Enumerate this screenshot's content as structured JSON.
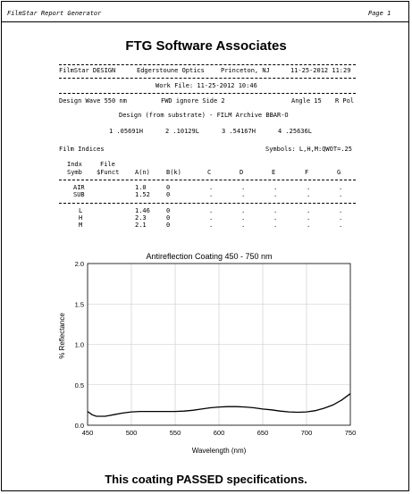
{
  "header": {
    "left": "FilmStar Report Generator",
    "right": "Page 1"
  },
  "company": "FTG Software Associates",
  "info": {
    "design": "FilmStar DESIGN",
    "company_name": "Edgerstoune Optics",
    "location": "Princeton, NJ",
    "datetime": "11-25-2012 11:29",
    "work_file": "Work File: 11-25-2012 10:46",
    "design_wave": "Design Wave 550 nm",
    "fwd": "FWD ignore Side 2",
    "angle": "Angle 15",
    "pol": "R Pol",
    "design_desc": "Design (from substrate) - FILM Archive BBAR-O",
    "layers": [
      "1 .05691H",
      "2 .10129L",
      "3 .54167H",
      "4 .25636L"
    ]
  },
  "indices": {
    "title": "Film Indices",
    "symbols": "Symbols: L,H,M:QWOT=.25",
    "head1": [
      "Indx",
      "File"
    ],
    "head2": [
      "Symb",
      "$Funct",
      "A(n)",
      "B(k)",
      "C",
      "D",
      "E",
      "F",
      "G"
    ],
    "dot": ".",
    "group1": [
      {
        "sym": "AIR",
        "a": "1.0",
        "b": "0"
      },
      {
        "sym": "SUB",
        "a": "1.52",
        "b": "0"
      }
    ],
    "group2": [
      {
        "sym": "L",
        "a": "1.46",
        "b": "0"
      },
      {
        "sym": "H",
        "a": "2.3",
        "b": "0"
      },
      {
        "sym": "M",
        "a": "2.1",
        "b": "0"
      }
    ]
  },
  "chart_data": {
    "type": "line",
    "title": "Antireflection Coating 450 - 750 nm",
    "xlabel": "Wavelength (nm)",
    "ylabel": "% Reflectance",
    "xlim": [
      450,
      750
    ],
    "ylim": [
      0,
      2.0
    ],
    "xticks": [
      "450",
      "500",
      "550",
      "600",
      "650",
      "700",
      "750"
    ],
    "yticks": [
      "0.0",
      "0.5",
      "1.0",
      "1.5",
      "2.0"
    ],
    "grid": true,
    "series": [
      {
        "color": "#000000",
        "x": [
          450,
          455,
          460,
          465,
          470,
          475,
          480,
          490,
          500,
          510,
          520,
          530,
          540,
          550,
          560,
          570,
          580,
          590,
          600,
          610,
          620,
          630,
          640,
          650,
          660,
          670,
          680,
          690,
          700,
          710,
          720,
          730,
          740,
          750
        ],
        "y": [
          0.17,
          0.13,
          0.11,
          0.11,
          0.11,
          0.12,
          0.13,
          0.15,
          0.165,
          0.17,
          0.17,
          0.17,
          0.17,
          0.17,
          0.175,
          0.185,
          0.2,
          0.215,
          0.225,
          0.23,
          0.23,
          0.225,
          0.215,
          0.2,
          0.19,
          0.175,
          0.165,
          0.16,
          0.165,
          0.18,
          0.21,
          0.25,
          0.31,
          0.39
        ]
      }
    ]
  },
  "footer": "This coating PASSED specifications."
}
